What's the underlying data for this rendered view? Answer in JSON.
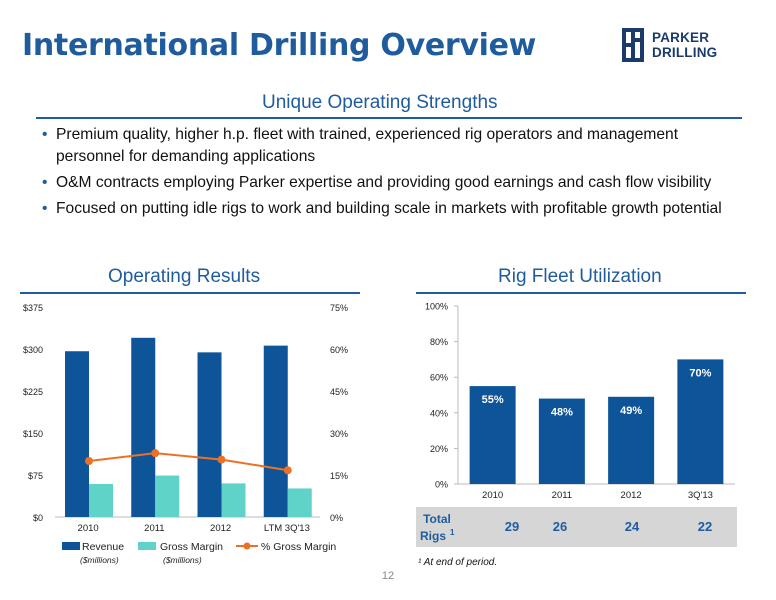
{
  "header": {
    "title": "International Drilling Overview",
    "logo_text": "PARKER DRILLING"
  },
  "strengths": {
    "heading": "Unique Operating Strengths",
    "bullets": [
      "Premium quality, higher h.p. fleet with trained, experienced rig operators and management personnel for demanding applications",
      "O&M contracts employing Parker expertise and providing good earnings and cash flow visibility",
      "Focused on putting idle rigs to work and building scale in markets with profitable growth potential"
    ]
  },
  "operating": {
    "heading": "Operating Results"
  },
  "fleet": {
    "heading": "Rig Fleet Utilization",
    "rigs_label_line1": "Total",
    "rigs_label_line2": "Rigs",
    "rigs_superscript": "1",
    "rigs": [
      "29",
      "26",
      "24",
      "22"
    ],
    "footnote": "¹ At end of period."
  },
  "colors": {
    "brand_blue": "#1f5c9e",
    "revenue": "#0d5499",
    "gross_margin": "#5fd3c8",
    "pct_line": "#ec7126",
    "table_bg": "#d6d6d6"
  },
  "page_number": "12",
  "chart_data": [
    {
      "type": "bar",
      "title": "Operating Results",
      "categories": [
        "2010",
        "2011",
        "2012",
        "LTM 3Q'13"
      ],
      "series": [
        {
          "name": "Revenue",
          "sub": "($millions)",
          "axis": "left",
          "values": [
            296,
            320,
            294,
            306
          ]
        },
        {
          "name": "Gross Margin",
          "sub": "($millions)",
          "axis": "left",
          "values": [
            59,
            74,
            60,
            51
          ]
        },
        {
          "name": "% Gross Margin",
          "type": "line",
          "axis": "right",
          "values": [
            20,
            22.8,
            20.5,
            16.7
          ]
        }
      ],
      "ylim": [
        0,
        375
      ],
      "yticks": [
        "$0",
        "$75",
        "$150",
        "$225",
        "$300",
        "$375"
      ],
      "y2lim": [
        0,
        75
      ],
      "y2ticks": [
        "0%",
        "15%",
        "30%",
        "45%",
        "60%",
        "75%"
      ],
      "legend": "bottom",
      "grid": false
    },
    {
      "type": "bar",
      "title": "Rig Fleet Utilization",
      "categories": [
        "2010",
        "2011",
        "2012",
        "3Q'13"
      ],
      "values": [
        55,
        48,
        49,
        70
      ],
      "labels": [
        "55%",
        "48%",
        "49%",
        "70%"
      ],
      "ylim": [
        0,
        100
      ],
      "yticks": [
        "0%",
        "20%",
        "40%",
        "60%",
        "80%",
        "100%"
      ],
      "grid": false
    }
  ]
}
